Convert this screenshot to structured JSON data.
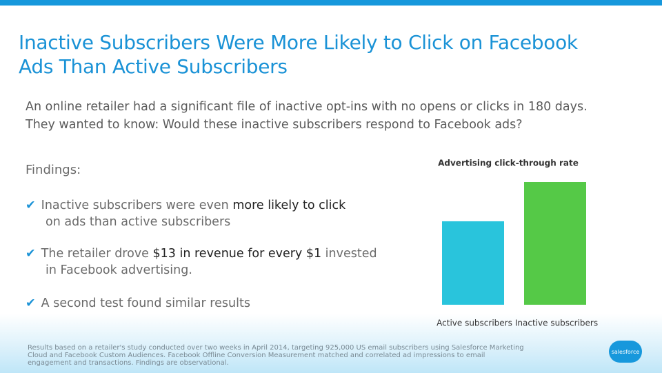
{
  "title": [
    "Inactive Subscribers Were More Likely to Click on Facebook",
    "Ads Than Active Subscribers"
  ],
  "intro": [
    "An online retailer had a significant file of inactive opt-ins with no opens or clicks in 180 days.",
    "They wanted to know: Would these inactive subscribers respond to Facebook ads?"
  ],
  "findings_heading": "Findings:",
  "bullets": [
    {
      "lines": [
        [
          {
            "text": "Inactive subscribers were even "
          },
          {
            "text": "more likely to click",
            "strong": true
          }
        ],
        [
          {
            "text": "on ads than active subscribers"
          }
        ]
      ]
    },
    {
      "lines": [
        [
          {
            "text": "The retailer drove "
          },
          {
            "text": "$13 in revenue for every $1",
            "strong": true
          },
          {
            "text": " invested"
          }
        ],
        [
          {
            "text": "in Facebook advertising."
          }
        ]
      ]
    },
    {
      "lines": [
        [
          {
            "text": "A second test found similar results"
          }
        ]
      ]
    }
  ],
  "footnote": "Results based on a retailer's study conducted over two weeks in April 2014, targeting 925,000 US email subscribers using Salesforce Marketing Cloud and Facebook Custom Audiences. Facebook Offline Conversion Measurement matched and correlated ad impressions to email engagement and transactions. Findings are observational.",
  "logo": "salesforce",
  "chart_data": {
    "type": "bar",
    "title": "Advertising click-through rate",
    "categories": [
      "Active subscribers",
      "Inactive subscribers"
    ],
    "values": [
      0.68,
      1.0
    ],
    "colors": [
      "#29c4dc",
      "#55c947"
    ]
  }
}
